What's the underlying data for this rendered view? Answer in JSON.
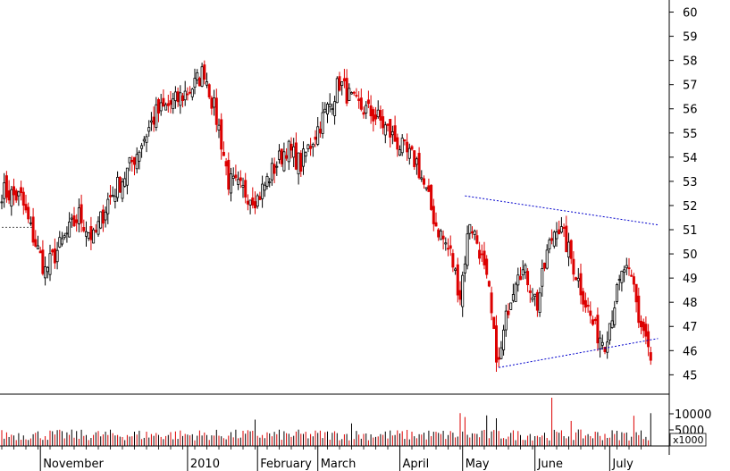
{
  "chart_data": [
    {
      "type": "candlestick",
      "price_axis": {
        "ticks": [
          "60",
          "59",
          "58",
          "57",
          "56",
          "55",
          "54",
          "53",
          "52",
          "51",
          "50",
          "49",
          "48",
          "47",
          "46",
          "45"
        ],
        "ylim": [
          44.2,
          60.5
        ]
      },
      "months": [
        "November",
        "2010",
        "February",
        "March",
        "April",
        "May",
        "June",
        "July"
      ],
      "colors": {
        "up": "#000000",
        "down": "#dd0000",
        "trend": "#0000cc"
      },
      "seed_close": 52.0,
      "anchors": [
        [
          0,
          52.6
        ],
        [
          8,
          52.3
        ],
        [
          12,
          51.0
        ],
        [
          18,
          49.3
        ],
        [
          24,
          50.3
        ],
        [
          32,
          51.6
        ],
        [
          38,
          50.6
        ],
        [
          44,
          52.2
        ],
        [
          52,
          53.4
        ],
        [
          58,
          54.6
        ],
        [
          64,
          55.8
        ],
        [
          72,
          56.3
        ],
        [
          80,
          57.0
        ],
        [
          84,
          57.6
        ],
        [
          90,
          55.2
        ],
        [
          94,
          53.0
        ],
        [
          100,
          52.6
        ],
        [
          106,
          52.3
        ],
        [
          112,
          53.4
        ],
        [
          118,
          54.4
        ],
        [
          124,
          53.7
        ],
        [
          130,
          55.0
        ],
        [
          136,
          56.2
        ],
        [
          140,
          57.1
        ],
        [
          146,
          56.2
        ],
        [
          150,
          56.0
        ],
        [
          156,
          55.6
        ],
        [
          160,
          55.1
        ],
        [
          164,
          54.6
        ],
        [
          168,
          54.1
        ],
        [
          172,
          53.8
        ],
        [
          176,
          52.5
        ],
        [
          180,
          51.2
        ],
        [
          186,
          50.0
        ],
        [
          190,
          48.3
        ],
        [
          194,
          51.4
        ],
        [
          198,
          50.2
        ],
        [
          202,
          48.3
        ],
        [
          204,
          46.5
        ],
        [
          206,
          45.4
        ],
        [
          210,
          47.9
        ],
        [
          214,
          49.5
        ],
        [
          218,
          49.0
        ],
        [
          222,
          47.9
        ],
        [
          226,
          50.0
        ],
        [
          230,
          51.3
        ],
        [
          234,
          50.4
        ],
        [
          238,
          49.2
        ],
        [
          242,
          48.0
        ],
        [
          246,
          46.8
        ],
        [
          250,
          46.4
        ],
        [
          254,
          48.0
        ],
        [
          258,
          49.4
        ],
        [
          262,
          48.6
        ],
        [
          264,
          47.3
        ],
        [
          267,
          46.6
        ],
        [
          269,
          45.6
        ]
      ],
      "trendlines": [
        {
          "from": {
            "bar": 192,
            "price": 52.4
          },
          "to": {
            "bar": 272,
            "price": 51.2
          }
        },
        {
          "from": {
            "bar": 206,
            "price": 45.3
          },
          "to": {
            "bar": 272,
            "price": 46.5
          }
        }
      ],
      "reference_line": {
        "from_bar": 0,
        "to_bar": 13,
        "price": 51.1
      }
    },
    {
      "type": "bar",
      "volume_axis": {
        "ticks": [
          "10000",
          "5000"
        ],
        "unit": "x1000",
        "ylim": [
          0,
          15000
        ]
      },
      "base_volume": 3800,
      "spikes": [
        [
          105,
          8200
        ],
        [
          145,
          7000
        ],
        [
          190,
          10200
        ],
        [
          192,
          9000
        ],
        [
          201,
          9500
        ],
        [
          205,
          8600
        ],
        [
          228,
          15000
        ],
        [
          236,
          7800
        ],
        [
          262,
          9400
        ],
        [
          269,
          10200
        ]
      ]
    }
  ]
}
